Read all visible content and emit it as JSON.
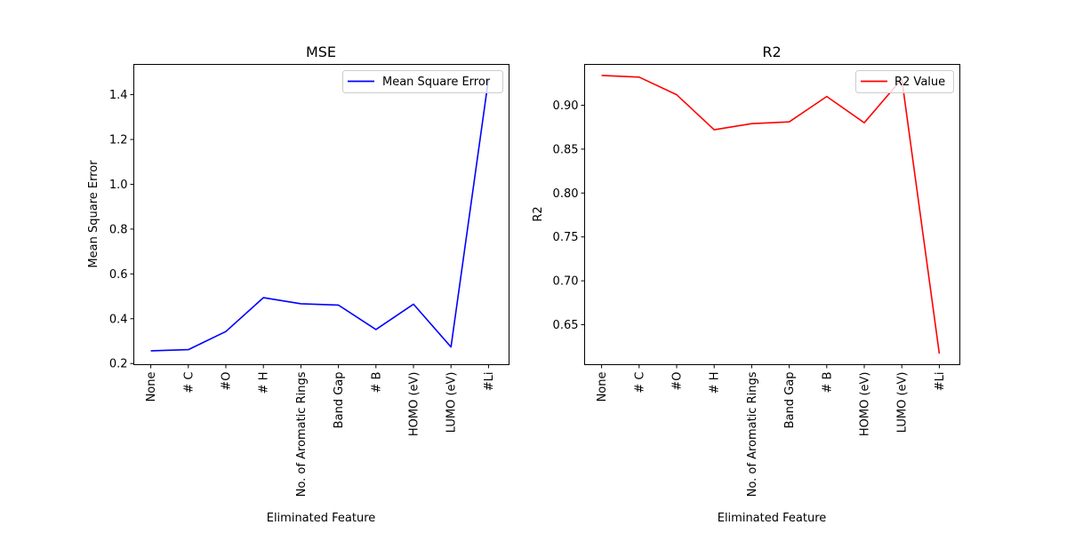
{
  "figure": {
    "background": "#ffffff"
  },
  "chart_data": [
    {
      "type": "line",
      "title": "MSE",
      "xlabel": "Eliminated Feature",
      "ylabel": "Mean Square Error",
      "categories": [
        "None",
        "# C",
        "#O",
        "# H",
        "No. of Aromatic Rings",
        "Band Gap",
        "# B",
        "HOMO (eV)",
        "LUMO (eV)",
        "#Li"
      ],
      "ylim": [
        0.195,
        1.535
      ],
      "yticks": [
        0.2,
        0.4,
        0.6,
        0.8,
        1.0,
        1.2,
        1.4
      ],
      "ytick_labels": [
        "0.2",
        "0.4",
        "0.6",
        "0.8",
        "1.0",
        "1.2",
        "1.4"
      ],
      "grid": false,
      "legend_position": "top-right",
      "series": [
        {
          "name": "Mean Square Error",
          "color": "#0000ff",
          "values": [
            0.257,
            0.262,
            0.343,
            0.494,
            0.467,
            0.461,
            0.352,
            0.465,
            0.274,
            1.47
          ]
        }
      ]
    },
    {
      "type": "line",
      "title": "R2",
      "xlabel": "Eliminated Feature",
      "ylabel": "R2",
      "categories": [
        "None",
        "# C",
        "#O",
        "# H",
        "No. of Aromatic Rings",
        "Band Gap",
        "# B",
        "HOMO (eV)",
        "LUMO (eV)",
        "#Li"
      ],
      "ylim": [
        0.6045,
        0.9465
      ],
      "yticks": [
        0.65,
        0.7,
        0.75,
        0.8,
        0.85,
        0.9
      ],
      "ytick_labels": [
        "0.65",
        "0.70",
        "0.75",
        "0.80",
        "0.85",
        "0.90"
      ],
      "grid": false,
      "legend_position": "top-right",
      "series": [
        {
          "name": "R2 Value",
          "color": "#ff0000",
          "values": [
            0.934,
            0.932,
            0.912,
            0.872,
            0.879,
            0.881,
            0.91,
            0.88,
            0.93,
            0.617
          ]
        }
      ]
    }
  ]
}
